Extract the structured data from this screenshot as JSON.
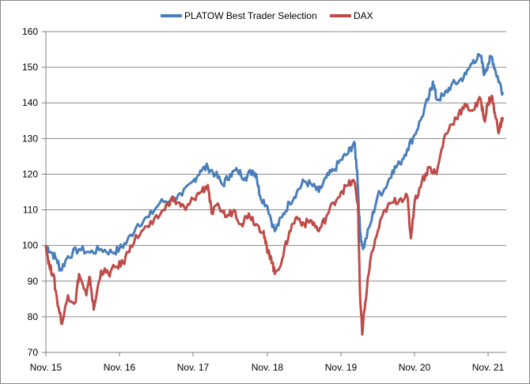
{
  "chart_data": {
    "type": "line",
    "title": "",
    "xlabel": "",
    "ylabel": "",
    "ylim": [
      70,
      160
    ],
    "yticks": [
      70,
      80,
      90,
      100,
      110,
      120,
      130,
      140,
      150,
      160
    ],
    "xticks": [
      "Nov. 15",
      "Nov. 16",
      "Nov. 17",
      "Nov. 18",
      "Nov. 19",
      "Nov. 20",
      "Nov. 21"
    ],
    "grid": true,
    "legend_position": "top",
    "series": [
      {
        "name": "PLATOW Best Trader Selection",
        "color": "#4a7ebb",
        "points": [
          [
            0.0,
            100
          ],
          [
            0.08,
            98
          ],
          [
            0.15,
            96
          ],
          [
            0.2,
            93
          ],
          [
            0.3,
            97
          ],
          [
            0.45,
            99
          ],
          [
            0.6,
            98
          ],
          [
            0.75,
            99
          ],
          [
            0.9,
            98
          ],
          [
            1.0,
            99
          ],
          [
            1.1,
            101
          ],
          [
            1.25,
            106
          ],
          [
            1.4,
            108
          ],
          [
            1.55,
            112
          ],
          [
            1.7,
            113
          ],
          [
            1.85,
            114
          ],
          [
            2.0,
            118
          ],
          [
            2.1,
            121
          ],
          [
            2.2,
            122
          ],
          [
            2.3,
            120
          ],
          [
            2.4,
            117
          ],
          [
            2.5,
            120
          ],
          [
            2.6,
            121
          ],
          [
            2.7,
            119
          ],
          [
            2.8,
            121
          ],
          [
            2.85,
            120
          ],
          [
            2.9,
            114
          ],
          [
            3.0,
            111
          ],
          [
            3.1,
            104
          ],
          [
            3.2,
            108
          ],
          [
            3.3,
            112
          ],
          [
            3.4,
            115
          ],
          [
            3.5,
            118
          ],
          [
            3.6,
            117
          ],
          [
            3.7,
            115
          ],
          [
            3.8,
            119
          ],
          [
            3.9,
            121
          ],
          [
            4.0,
            124
          ],
          [
            4.1,
            126
          ],
          [
            4.18,
            129
          ],
          [
            4.22,
            121
          ],
          [
            4.26,
            104
          ],
          [
            4.3,
            99
          ],
          [
            4.4,
            106
          ],
          [
            4.5,
            114
          ],
          [
            4.6,
            116
          ],
          [
            4.7,
            121
          ],
          [
            4.8,
            123
          ],
          [
            4.9,
            127
          ],
          [
            5.0,
            131
          ],
          [
            5.1,
            136
          ],
          [
            5.2,
            142
          ],
          [
            5.25,
            146
          ],
          [
            5.3,
            141
          ],
          [
            5.4,
            142
          ],
          [
            5.5,
            145
          ],
          [
            5.6,
            146
          ],
          [
            5.7,
            148
          ],
          [
            5.8,
            152
          ],
          [
            5.9,
            153
          ],
          [
            5.95,
            148
          ],
          [
            6.0,
            151
          ],
          [
            6.05,
            153
          ],
          [
            6.1,
            149
          ],
          [
            6.15,
            146
          ],
          [
            6.2,
            143
          ]
        ]
      },
      {
        "name": "DAX",
        "color": "#be4b48",
        "points": [
          [
            0.0,
            100
          ],
          [
            0.05,
            94
          ],
          [
            0.1,
            92
          ],
          [
            0.15,
            85
          ],
          [
            0.22,
            78
          ],
          [
            0.3,
            86
          ],
          [
            0.4,
            84
          ],
          [
            0.45,
            92
          ],
          [
            0.55,
            86
          ],
          [
            0.6,
            91
          ],
          [
            0.65,
            82
          ],
          [
            0.75,
            93
          ],
          [
            0.85,
            92
          ],
          [
            0.95,
            94
          ],
          [
            1.05,
            95
          ],
          [
            1.15,
            100
          ],
          [
            1.3,
            104
          ],
          [
            1.45,
            106
          ],
          [
            1.6,
            110
          ],
          [
            1.7,
            113
          ],
          [
            1.8,
            112
          ],
          [
            1.9,
            110
          ],
          [
            2.0,
            113
          ],
          [
            2.1,
            115
          ],
          [
            2.2,
            117
          ],
          [
            2.25,
            109
          ],
          [
            2.35,
            111
          ],
          [
            2.45,
            108
          ],
          [
            2.55,
            110
          ],
          [
            2.65,
            106
          ],
          [
            2.75,
            109
          ],
          [
            2.85,
            106
          ],
          [
            2.95,
            104
          ],
          [
            3.0,
            98
          ],
          [
            3.05,
            97
          ],
          [
            3.1,
            92
          ],
          [
            3.2,
            96
          ],
          [
            3.3,
            104
          ],
          [
            3.4,
            108
          ],
          [
            3.5,
            106
          ],
          [
            3.6,
            107
          ],
          [
            3.7,
            104
          ],
          [
            3.8,
            108
          ],
          [
            3.9,
            112
          ],
          [
            4.0,
            115
          ],
          [
            4.1,
            117
          ],
          [
            4.18,
            118
          ],
          [
            4.23,
            112
          ],
          [
            4.26,
            86
          ],
          [
            4.29,
            75
          ],
          [
            4.33,
            84
          ],
          [
            4.4,
            96
          ],
          [
            4.5,
            104
          ],
          [
            4.6,
            110
          ],
          [
            4.7,
            112
          ],
          [
            4.8,
            113
          ],
          [
            4.9,
            114
          ],
          [
            4.95,
            102
          ],
          [
            5.0,
            112
          ],
          [
            5.1,
            118
          ],
          [
            5.2,
            122
          ],
          [
            5.3,
            120
          ],
          [
            5.4,
            130
          ],
          [
            5.5,
            134
          ],
          [
            5.6,
            137
          ],
          [
            5.7,
            139
          ],
          [
            5.8,
            138
          ],
          [
            5.9,
            141
          ],
          [
            5.95,
            135
          ],
          [
            6.0,
            140
          ],
          [
            6.05,
            142
          ],
          [
            6.1,
            136
          ],
          [
            6.15,
            132
          ],
          [
            6.2,
            136
          ]
        ]
      }
    ]
  }
}
